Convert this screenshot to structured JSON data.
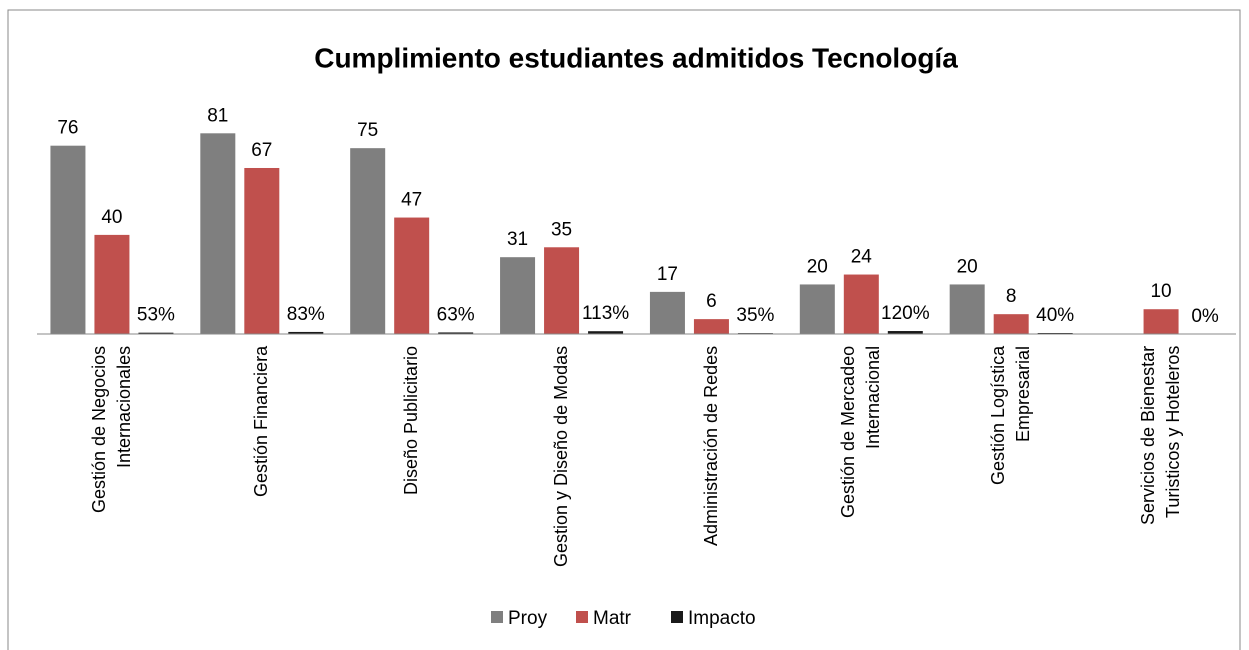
{
  "chart_data": {
    "type": "bar",
    "title": "Cumplimiento estudiantes admitidos Tecnología",
    "categories": [
      "Gestión de Negocios Internacionales",
      "Gestión Financiera",
      "Diseño Publicitario",
      "Gestion y Diseño de Modas",
      "Administración de Redes",
      "Gestión de Mercadeo Internacional",
      "Gestión Logística Empresarial",
      "Servicios de Bienestar Turisticos y Hoteleros"
    ],
    "series": [
      {
        "name": "Proy",
        "color": "#7f7f7f",
        "values": [
          76,
          81,
          75,
          31,
          17,
          20,
          20,
          null
        ]
      },
      {
        "name": "Matr",
        "color": "#c0504d",
        "values": [
          40,
          67,
          47,
          35,
          6,
          24,
          8,
          10
        ]
      },
      {
        "name": "Impacto",
        "color": "#1a1a1a",
        "values": [
          0.53,
          0.83,
          0.63,
          1.13,
          0.35,
          1.2,
          0.4,
          0
        ],
        "value_labels": [
          "53%",
          "83%",
          "63%",
          "113%",
          "35%",
          "120%",
          "40%",
          "0%"
        ]
      }
    ],
    "ylim": [
      0,
      90
    ],
    "legend": "bottom"
  }
}
